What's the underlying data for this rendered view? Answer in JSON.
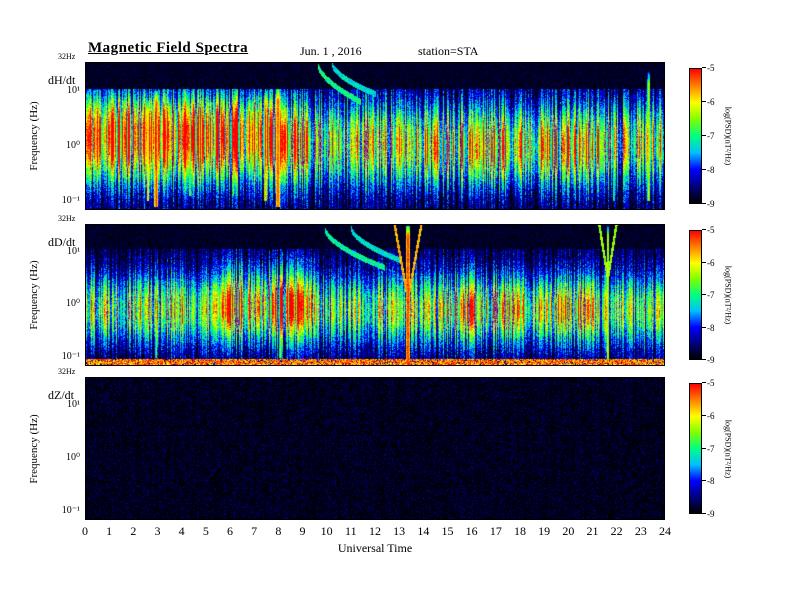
{
  "figure": {
    "title": "Magnetic Field Spectra",
    "date": "Jun. 1 , 2016",
    "station": "station=STA"
  },
  "x_axis": {
    "label": "Universal Time",
    "range": [
      0,
      24
    ],
    "ticks": [
      0,
      1,
      2,
      3,
      4,
      5,
      6,
      7,
      8,
      9,
      10,
      11,
      12,
      13,
      14,
      15,
      16,
      17,
      18,
      19,
      20,
      21,
      22,
      23,
      24
    ]
  },
  "y_axis": {
    "label": "Frequency  (Hz)",
    "top_edge_label": "32Hz",
    "log_range": [
      -1.15,
      1.505
    ],
    "ticks": [
      {
        "logf": 1,
        "label": "10¹"
      },
      {
        "logf": 0,
        "label": "10⁰"
      },
      {
        "logf": -1,
        "label": "10⁻¹"
      }
    ]
  },
  "colorbar": {
    "label": "log(PSD)(nT²/Hz)",
    "range": [
      -9,
      -5
    ],
    "ticks": [
      -5,
      -6,
      -7,
      -8,
      -9
    ],
    "stops": [
      "#000000",
      "#000080",
      "#0000ff",
      "#00c0ff",
      "#00ff80",
      "#80ff00",
      "#ffff00",
      "#ff8000",
      "#ff0000"
    ]
  },
  "chart_data": {
    "type": "heatmap",
    "summary": "Three stacked dynamic power spectrograms (dH/dt, dD/dt, dZ/dt) for station STA on Jun. 1 2016; frequency 0.07-32 Hz (log scale) vs 0-24 UT; color = log PSD from -9 (black/blue) to -5 (red).",
    "time_range_hours": [
      0,
      24
    ],
    "frequency_range_hz": [
      0.07,
      32
    ],
    "psd_log_range": [
      -9,
      -5
    ],
    "panels": [
      {
        "id": "dHdt",
        "label": "dH/dt",
        "summary": "Broadband power band 0.1-8 Hz all day, strongest 0-9 UT; intense red bursts near 2.9, 7.5 and 8.0 UT; weaker bursts 4.3, 6.1, 21.9, 23.4 UT; descending arc features near 10-12 UT; black above ~11 Hz.",
        "seed": 11,
        "base": -8.75,
        "pixel_noise": 0.5,
        "column_noise": 0.45,
        "top_black_above_logf": 1.05,
        "speckle": null,
        "bands": [
          {
            "center": 0.05,
            "width": 0.52,
            "amp": 2.35,
            "t0": -1,
            "t1": 25
          },
          {
            "center": 0.15,
            "width": 0.55,
            "amp": 0.85,
            "t0": -1,
            "t1": 9.3
          },
          {
            "center": 0.6,
            "width": 0.3,
            "amp": 0.6,
            "t0": -1,
            "t1": 8.2
          },
          {
            "center": -0.2,
            "width": 0.4,
            "amp": 0.5,
            "t0": 13.0,
            "t1": 22.0
          }
        ],
        "streaks": [
          {
            "t": 2.55,
            "w": 0.05,
            "level": -5.6,
            "f0": -1.0,
            "f1": 0.85
          },
          {
            "t": 2.9,
            "w": 0.08,
            "level": -5.15,
            "f0": -1.1,
            "f1": 1.0
          },
          {
            "t": 7.45,
            "w": 0.06,
            "level": -5.4,
            "f0": -1.0,
            "f1": 1.0
          },
          {
            "t": 7.95,
            "w": 0.09,
            "level": -5.15,
            "f0": -1.1,
            "f1": 1.05
          },
          {
            "t": 4.3,
            "w": 0.05,
            "level": -6.4,
            "f0": -0.9,
            "f1": 0.7
          },
          {
            "t": 6.1,
            "w": 0.04,
            "level": -6.6,
            "f0": -0.9,
            "f1": 0.6
          },
          {
            "t": 21.9,
            "w": 0.05,
            "level": -6.7,
            "f0": -1.0,
            "f1": 0.9
          },
          {
            "t": 23.35,
            "w": 0.06,
            "level": -6.1,
            "f0": -1.0,
            "f1": 1.35
          }
        ],
        "arcs": [
          {
            "t0": 9.6,
            "t1": 11.4,
            "f_start": 1.5,
            "f_end": 0.8,
            "level": -7.0
          },
          {
            "t0": 10.2,
            "t1": 12.0,
            "f_start": 1.5,
            "f_end": 0.95,
            "level": -7.3
          }
        ],
        "funnels": [],
        "bottom_line": null
      },
      {
        "id": "dDdt",
        "label": "dD/dt",
        "summary": "Broadband band ~0.1-5 Hz, bright yellow blob 5-10 UT; intense red burst with funnel-shaped dispersive top at 13.3 UT reaching 32 Hz; weaker funnel burst at 21.7 UT; red noise line along bottom edge; black above ~11 Hz.",
        "seed": 22,
        "base": -8.75,
        "pixel_noise": 0.5,
        "column_noise": 0.4,
        "top_black_above_logf": 1.05,
        "speckle": null,
        "bands": [
          {
            "center": -0.1,
            "width": 0.45,
            "amp": 2.0,
            "t0": -1,
            "t1": 25
          },
          {
            "center": 0.1,
            "width": 0.5,
            "amp": 1.15,
            "t0": 5.0,
            "t1": 9.8
          },
          {
            "center": -0.05,
            "width": 0.42,
            "amp": 0.55,
            "t0": 14.0,
            "t1": 21.5
          },
          {
            "center": 0.0,
            "width": 0.45,
            "amp": 0.4,
            "t0": -1,
            "t1": 4.5
          }
        ],
        "streaks": [
          {
            "t": 13.35,
            "w": 0.1,
            "level": -5.05,
            "f0": -1.15,
            "f1": 1.5
          },
          {
            "t": 21.65,
            "w": 0.05,
            "level": -5.9,
            "f0": -1.1,
            "f1": 1.5
          },
          {
            "t": 8.05,
            "w": 0.05,
            "level": -6.4,
            "f0": -1.0,
            "f1": 0.6
          },
          {
            "t": 2.9,
            "w": 0.04,
            "level": -6.6,
            "f0": -1.0,
            "f1": 0.5
          }
        ],
        "arcs": [
          {
            "t0": 9.9,
            "t1": 12.4,
            "f_start": 1.45,
            "f_end": 0.7,
            "level": -7.1
          },
          {
            "t0": 11.0,
            "t1": 13.0,
            "f_start": 1.45,
            "f_end": 0.85,
            "level": -7.3
          }
        ],
        "funnels": [
          {
            "t": 13.35,
            "f0": 0.1,
            "spread": 0.55,
            "level": -5.7
          },
          {
            "t": 21.65,
            "f0": 0.5,
            "spread": 0.35,
            "level": -6.4
          }
        ],
        "bottom_line": {
          "below_logf": -1.02,
          "level": -5.5
        }
      },
      {
        "id": "dZdt",
        "label": "dZ/dt",
        "summary": "Essentially no power: black background with sparse faint dark-blue speckles across all frequencies and times.",
        "seed": 33,
        "base": -8.95,
        "pixel_noise": 0.38,
        "column_noise": 0.06,
        "top_black_above_logf": null,
        "speckle": {
          "prob": 0.003,
          "level": -8.2
        },
        "bands": [],
        "streaks": [],
        "arcs": [],
        "funnels": [],
        "bottom_line": null
      }
    ]
  }
}
